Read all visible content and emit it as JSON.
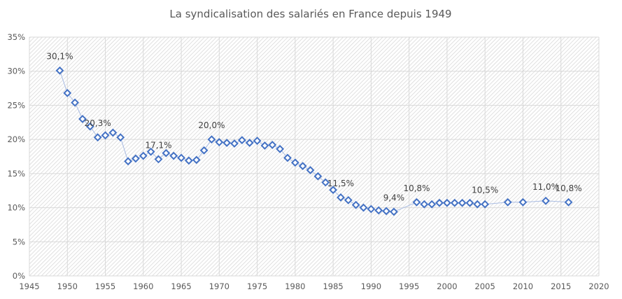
{
  "chart_data": {
    "type": "scatter",
    "title": "La syndicalisation des salariés en France depuis 1949",
    "xlabel": "",
    "ylabel": "",
    "xlim": [
      1945,
      2020
    ],
    "ylim": [
      0,
      35
    ],
    "x_ticks": [
      1945,
      1950,
      1955,
      1960,
      1965,
      1970,
      1975,
      1980,
      1985,
      1990,
      1995,
      2000,
      2005,
      2010,
      2015,
      2020
    ],
    "y_ticks": [
      "0%",
      "5%",
      "10%",
      "15%",
      "20%",
      "25%",
      "30%",
      "35%"
    ],
    "grid": true,
    "marker": "diamond",
    "colors": {
      "marker": "#4472C4",
      "line": "#A9BCE3",
      "title": "#595959",
      "grid": "#D9D9D9"
    },
    "series": [
      {
        "x": [
          1949,
          1950,
          1951,
          1952,
          1953,
          1954,
          1955,
          1956,
          1957,
          1958,
          1959,
          1960,
          1961,
          1962,
          1963,
          1964,
          1965,
          1966,
          1967,
          1968,
          1969,
          1970,
          1971,
          1972,
          1973,
          1974,
          1975,
          1976,
          1977,
          1978,
          1979,
          1980,
          1981,
          1982,
          1983,
          1984,
          1985,
          1986,
          1987,
          1988,
          1989,
          1990,
          1991,
          1992,
          1993,
          1996,
          1997,
          1998,
          1999,
          2000,
          2001,
          2002,
          2003,
          2004,
          2005,
          2008,
          2010,
          2013,
          2016
        ],
        "y": [
          30.1,
          26.8,
          25.4,
          23.0,
          21.9,
          20.3,
          20.6,
          21.0,
          20.3,
          16.8,
          17.2,
          17.6,
          18.2,
          17.1,
          18.0,
          17.6,
          17.3,
          16.9,
          17.0,
          18.4,
          20.0,
          19.6,
          19.5,
          19.4,
          19.9,
          19.5,
          19.8,
          19.1,
          19.2,
          18.6,
          17.3,
          16.6,
          16.1,
          15.5,
          14.6,
          13.7,
          12.6,
          11.5,
          11.1,
          10.4,
          10.0,
          9.8,
          9.6,
          9.5,
          9.4,
          10.8,
          10.5,
          10.5,
          10.7,
          10.7,
          10.7,
          10.7,
          10.7,
          10.5,
          10.5,
          10.8,
          10.8,
          11.0,
          10.8
        ]
      }
    ],
    "annotations": [
      {
        "x": 1949,
        "y": 30.1,
        "text": "30,1%"
      },
      {
        "x": 1954,
        "y": 20.3,
        "text": "20,3%"
      },
      {
        "x": 1962,
        "y": 17.1,
        "text": "17,1%"
      },
      {
        "x": 1969,
        "y": 20.0,
        "text": "20,0%"
      },
      {
        "x": 1986,
        "y": 11.5,
        "text": "11,5%"
      },
      {
        "x": 1993,
        "y": 9.4,
        "text": "9,4%"
      },
      {
        "x": 1996,
        "y": 10.8,
        "text": "10,8%"
      },
      {
        "x": 2005,
        "y": 10.5,
        "text": "10,5%"
      },
      {
        "x": 2013,
        "y": 11.0,
        "text": "11,0%"
      },
      {
        "x": 2016,
        "y": 10.8,
        "text": "10,8%"
      }
    ]
  }
}
